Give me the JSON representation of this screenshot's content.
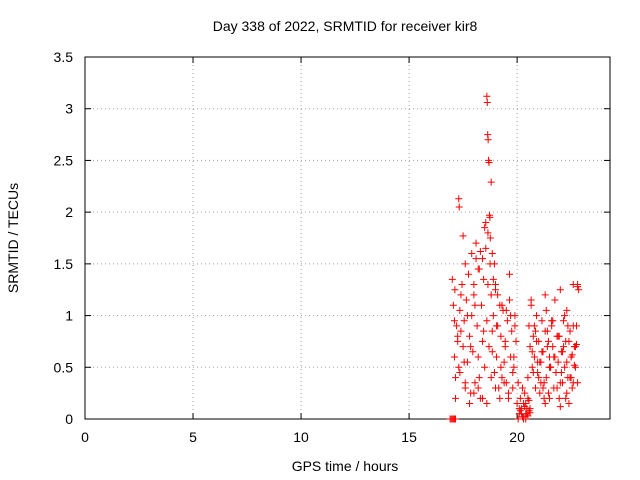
{
  "chart_data": {
    "type": "scatter",
    "title": "Day 338 of 2022, SRMTID for receiver kir8",
    "xlabel": "GPS time / hours",
    "ylabel": "SRMTID / TECUs",
    "xlim": [
      0,
      24.3
    ],
    "ylim": [
      0,
      3.5
    ],
    "xticks": [
      0,
      5,
      10,
      15,
      20
    ],
    "xtick_labels": [
      "0",
      "5",
      "10",
      "15",
      "20"
    ],
    "yticks": [
      0,
      0.5,
      1,
      1.5,
      2,
      2.5,
      3,
      3.5
    ],
    "ytick_labels": [
      "0",
      "0.5",
      "1",
      "1.5",
      "2",
      "2.5",
      "3",
      "3.5"
    ],
    "grid": true,
    "marker": "+",
    "series": [
      {
        "name": "SRMTID",
        "color": "#ff0000",
        "x": [
          16.9,
          16.95,
          17.0,
          17.05,
          17.1,
          17.15,
          17.0,
          17.05,
          17.1,
          17.12,
          17.15,
          17.2,
          17.25,
          17.3,
          17.35,
          17.4,
          17.45,
          17.5,
          17.55,
          17.6,
          17.65,
          17.7,
          17.75,
          17.8,
          17.85,
          17.9,
          17.95,
          18.0,
          18.05,
          18.1,
          18.15,
          18.2,
          18.25,
          18.3,
          18.35,
          18.4,
          18.45,
          18.5,
          18.55,
          18.6,
          18.65,
          18.7,
          18.75,
          18.8,
          18.85,
          18.9,
          18.95,
          19.0,
          19.05,
          19.1,
          19.15,
          19.2,
          19.25,
          19.3,
          19.35,
          19.4,
          19.45,
          19.5,
          19.55,
          19.6,
          19.65,
          19.7,
          19.75,
          19.8,
          19.85,
          19.9,
          19.95,
          17.3,
          17.32,
          17.5,
          17.6,
          17.9,
          18.0,
          18.1,
          18.2,
          18.3,
          18.4,
          18.5,
          18.55,
          18.6,
          18.62,
          18.64,
          18.66,
          18.68,
          18.7,
          18.72,
          18.74,
          18.76,
          18.8,
          18.85,
          18.9,
          18.95,
          19.0,
          19.1,
          19.3,
          19.5,
          19.7,
          19.9,
          17.1,
          17.25,
          17.4,
          17.55,
          17.7,
          17.85,
          18.05,
          18.25,
          18.45,
          18.65,
          18.85,
          19.05,
          19.25,
          19.45,
          19.65,
          19.85,
          17.15,
          17.35,
          17.6,
          17.8,
          18.0,
          18.2,
          18.4,
          18.6,
          18.8,
          19.0,
          19.2,
          19.4,
          19.6,
          19.8,
          20.0,
          20.05,
          20.1,
          20.15,
          20.2,
          20.25,
          20.3,
          20.35,
          20.4,
          20.45,
          20.5,
          20.55,
          20.6,
          20.65,
          20.7,
          20.75,
          20.8,
          20.85,
          20.9,
          20.95,
          21.0,
          21.05,
          21.1,
          21.15,
          21.2,
          21.25,
          21.3,
          21.35,
          21.4,
          21.45,
          21.5,
          21.55,
          21.6,
          21.65,
          21.7,
          21.75,
          21.8,
          21.85,
          21.9,
          21.95,
          22.0,
          22.05,
          22.1,
          22.15,
          22.2,
          22.25,
          22.3,
          22.35,
          22.4,
          22.45,
          22.5,
          22.55,
          22.6,
          22.65,
          22.7,
          22.75,
          22.8,
          20.1,
          20.2,
          20.3,
          20.4,
          20.5,
          20.6,
          20.7,
          20.8,
          20.9,
          21.0,
          21.1,
          21.2,
          21.3,
          21.4,
          21.5,
          21.6,
          21.7,
          21.8,
          21.9,
          22.0,
          22.1,
          22.2,
          22.3,
          22.4,
          22.5,
          22.6,
          22.7,
          22.8,
          20.05,
          20.15,
          20.25,
          20.35,
          20.45,
          20.55,
          20.65,
          20.75,
          20.85,
          20.95,
          21.05,
          21.15,
          21.25,
          21.35,
          21.45,
          21.55,
          21.65,
          21.75,
          21.85,
          21.95,
          22.05,
          22.15,
          22.25,
          22.35,
          22.45,
          22.55,
          22.65,
          22.75,
          20.3,
          20.4,
          20.5,
          20.6,
          20.45,
          20.55,
          21.3,
          21.5,
          22.0,
          22.3,
          22.6,
          22.8,
          22.85
        ],
        "y": [
          0,
          0,
          0,
          0,
          0,
          0,
          1.35,
          1.1,
          0.6,
          1.25,
          0.4,
          0.9,
          0.75,
          0.5,
          1.05,
          0.85,
          1.3,
          0.7,
          0.95,
          0.3,
          1.15,
          0.55,
          1.4,
          0.8,
          0.25,
          1.0,
          0.65,
          1.2,
          0.35,
          1.55,
          0.9,
          0.6,
          1.45,
          0.2,
          1.1,
          0.75,
          1.35,
          0.5,
          1.65,
          0.95,
          1.8,
          0.7,
          1.5,
          1.2,
          0.85,
          1.0,
          0.45,
          1.25,
          0.6,
          0.9,
          0.3,
          1.1,
          0.8,
          0.4,
          1.05,
          0.55,
          0.7,
          0.35,
          0.95,
          0.2,
          1.4,
          0.6,
          0.85,
          0.3,
          0.5,
          1.0,
          0.75,
          2.13,
          2.05,
          1.77,
          1.5,
          1.6,
          1.3,
          1.7,
          1.45,
          1.62,
          1.55,
          1.85,
          1.9,
          3.12,
          3.06,
          2.75,
          2.7,
          2.5,
          2.48,
          1.97,
          1.95,
          1.75,
          2.29,
          1.6,
          1.35,
          1.5,
          1.3,
          1.2,
          1.1,
          1.05,
          1.0,
          0.9,
          0.95,
          0.8,
          1.2,
          0.55,
          1.0,
          0.7,
          1.1,
          0.4,
          0.85,
          1.3,
          0.65,
          0.9,
          0.5,
          0.75,
          1.15,
          0.6,
          0.2,
          0.45,
          0.35,
          0.15,
          0.25,
          0.3,
          0.2,
          0.15,
          0.4,
          0.3,
          0.2,
          0.35,
          0.25,
          0.45,
          0.15,
          0.35,
          0.05,
          0.2,
          0.1,
          0.3,
          0.0,
          0.25,
          0.15,
          0.05,
          0.4,
          0.9,
          0.7,
          1.1,
          0.5,
          0.8,
          0.6,
          0.3,
          1.0,
          0.45,
          0.75,
          0.55,
          0.35,
          0.95,
          0.65,
          0.2,
          1.2,
          0.4,
          0.85,
          0.25,
          0.6,
          0.5,
          0.9,
          0.7,
          0.3,
          1.15,
          0.45,
          0.8,
          0.55,
          0.2,
          1.25,
          0.65,
          0.35,
          0.95,
          0.5,
          0.75,
          1.05,
          0.4,
          0.15,
          0.85,
          0.6,
          0.3,
          1.3,
          0.7,
          0.5,
          0.9,
          0.35,
          0.1,
          0.05,
          0.15,
          0.0,
          0.2,
          0.1,
          0.65,
          0.9,
          0.75,
          0.4,
          0.55,
          0.3,
          0.85,
          0.7,
          0.5,
          0.95,
          0.6,
          0.45,
          0.8,
          0.35,
          0.65,
          1.0,
          0.55,
          0.75,
          0.4,
          0.9,
          0.7,
          1.28,
          0.0,
          0.08,
          0.02,
          0.12,
          0.05,
          0.18,
          1.15,
          0.45,
          0.85,
          0.55,
          0.25,
          0.65,
          0.35,
          1.05,
          0.75,
          0.5,
          0.95,
          0.6,
          0.3,
          0.8,
          0.45,
          0.7,
          0.2,
          0.9,
          0.4,
          0.62,
          0.52,
          0.72,
          0.02,
          0.05,
          0.03,
          0.06,
          0.1,
          0.08,
          0.15,
          0.2,
          0.12,
          0.25,
          0.35,
          1.3,
          1.25
        ]
      }
    ]
  }
}
